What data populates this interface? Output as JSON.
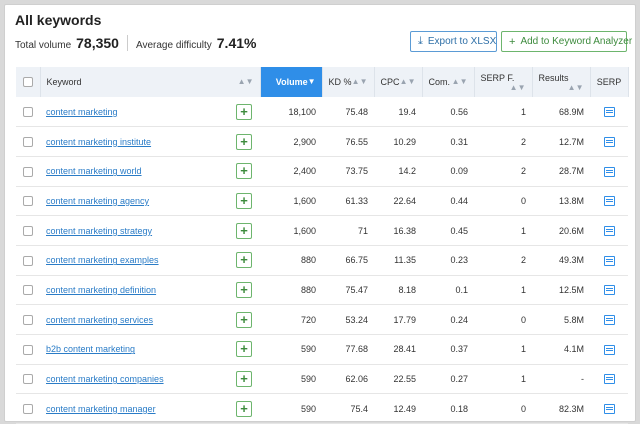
{
  "header": {
    "title": "All keywords",
    "total_volume_label": "Total volume",
    "total_volume_value": "78,350",
    "avg_difficulty_label": "Average difficulty",
    "avg_difficulty_value": "7.41%",
    "export_label": "Export to XLSX",
    "add_label": "Add to Keyword Analyzer"
  },
  "table": {
    "columns": [
      "Keyword",
      "Volume",
      "KD %",
      "CPC",
      "Com.",
      "SERP F.",
      "Results",
      "SERP"
    ],
    "rows": [
      {
        "keyword": "content marketing",
        "volume": "18,100",
        "kd": "75.48",
        "cpc": "19.4",
        "com": "0.56",
        "serp_f": "1",
        "results": "68.9M"
      },
      {
        "keyword": "content marketing institute",
        "volume": "2,900",
        "kd": "76.55",
        "cpc": "10.29",
        "com": "0.31",
        "serp_f": "2",
        "results": "12.7M"
      },
      {
        "keyword": "content marketing world",
        "volume": "2,400",
        "kd": "73.75",
        "cpc": "14.2",
        "com": "0.09",
        "serp_f": "2",
        "results": "28.7M"
      },
      {
        "keyword": "content marketing agency",
        "volume": "1,600",
        "kd": "61.33",
        "cpc": "22.64",
        "com": "0.44",
        "serp_f": "0",
        "results": "13.8M"
      },
      {
        "keyword": "content marketing strategy",
        "volume": "1,600",
        "kd": "71",
        "cpc": "16.38",
        "com": "0.45",
        "serp_f": "1",
        "results": "20.6M"
      },
      {
        "keyword": "content marketing examples",
        "volume": "880",
        "kd": "66.75",
        "cpc": "11.35",
        "com": "0.23",
        "serp_f": "2",
        "results": "49.3M"
      },
      {
        "keyword": "content marketing definition",
        "volume": "880",
        "kd": "75.47",
        "cpc": "8.18",
        "com": "0.1",
        "serp_f": "1",
        "results": "12.5M"
      },
      {
        "keyword": "content marketing services",
        "volume": "720",
        "kd": "53.24",
        "cpc": "17.79",
        "com": "0.24",
        "serp_f": "0",
        "results": "5.8M"
      },
      {
        "keyword": "b2b content marketing",
        "volume": "590",
        "kd": "77.68",
        "cpc": "28.41",
        "com": "0.37",
        "serp_f": "1",
        "results": "4.1M"
      },
      {
        "keyword": "content marketing companies",
        "volume": "590",
        "kd": "62.06",
        "cpc": "22.55",
        "com": "0.27",
        "serp_f": "1",
        "results": "-"
      },
      {
        "keyword": "content marketing manager",
        "volume": "590",
        "kd": "75.4",
        "cpc": "12.49",
        "com": "0.18",
        "serp_f": "0",
        "results": "82.3M"
      }
    ]
  },
  "icons": {
    "export": "download-icon",
    "add": "plus-icon",
    "sort": "sort-arrows-icon",
    "serp": "serp-snapshot-icon"
  },
  "colors": {
    "accent": "#2f8ee8",
    "link": "#2a7cc7",
    "green": "#3d8b3d"
  }
}
